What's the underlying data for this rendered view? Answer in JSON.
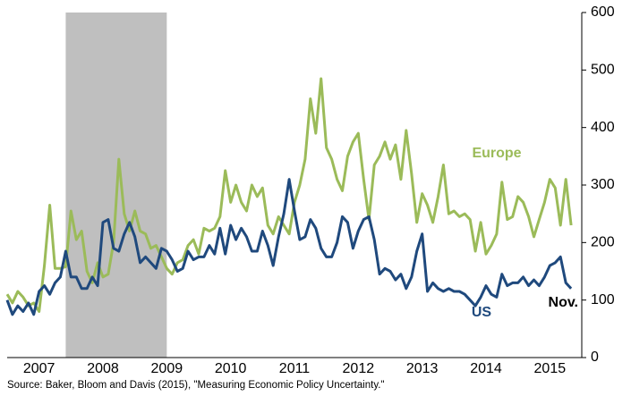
{
  "chart_data": {
    "type": "line",
    "x": [
      2007,
      2007.083,
      2007.167,
      2007.25,
      2007.333,
      2007.417,
      2007.5,
      2007.583,
      2007.667,
      2007.75,
      2007.833,
      2007.917,
      2008,
      2008.083,
      2008.167,
      2008.25,
      2008.333,
      2008.417,
      2008.5,
      2008.583,
      2008.667,
      2008.75,
      2008.833,
      2008.917,
      2009,
      2009.083,
      2009.167,
      2009.25,
      2009.333,
      2009.417,
      2009.5,
      2009.583,
      2009.667,
      2009.75,
      2009.833,
      2009.917,
      2010,
      2010.083,
      2010.167,
      2010.25,
      2010.333,
      2010.417,
      2010.5,
      2010.583,
      2010.667,
      2010.75,
      2010.833,
      2010.917,
      2011,
      2011.083,
      2011.167,
      2011.25,
      2011.333,
      2011.417,
      2011.5,
      2011.583,
      2011.667,
      2011.75,
      2011.833,
      2011.917,
      2012,
      2012.083,
      2012.167,
      2012.25,
      2012.333,
      2012.417,
      2012.5,
      2012.583,
      2012.667,
      2012.75,
      2012.833,
      2012.917,
      2013,
      2013.083,
      2013.167,
      2013.25,
      2013.333,
      2013.417,
      2013.5,
      2013.583,
      2013.667,
      2013.75,
      2013.833,
      2013.917,
      2014,
      2014.083,
      2014.167,
      2014.25,
      2014.333,
      2014.417,
      2014.5,
      2014.583,
      2014.667,
      2014.75,
      2014.833,
      2014.917,
      2015,
      2015.083,
      2015.167,
      2015.25,
      2015.333,
      2015.417,
      2015.5,
      2015.583,
      2015.667,
      2015.75,
      2015.833
    ],
    "series": [
      {
        "name": "Europe",
        "color": "#9bbb59",
        "values": [
          110,
          95,
          115,
          105,
          90,
          95,
          80,
          160,
          265,
          155,
          155,
          158,
          255,
          205,
          220,
          150,
          130,
          165,
          140,
          145,
          200,
          345,
          250,
          220,
          255,
          220,
          215,
          190,
          195,
          175,
          155,
          145,
          165,
          170,
          195,
          205,
          180,
          225,
          220,
          225,
          245,
          325,
          270,
          300,
          270,
          255,
          300,
          280,
          295,
          230,
          215,
          245,
          230,
          215,
          270,
          300,
          345,
          450,
          390,
          485,
          365,
          345,
          310,
          290,
          350,
          375,
          390,
          310,
          240,
          335,
          350,
          375,
          345,
          370,
          310,
          395,
          320,
          235,
          285,
          265,
          235,
          280,
          335,
          250,
          255,
          245,
          250,
          240,
          185,
          235,
          180,
          195,
          215,
          305,
          240,
          245,
          280,
          270,
          245,
          210,
          240,
          270,
          310,
          295,
          230,
          310,
          230
        ]
      },
      {
        "name": "US",
        "color": "#1f497d",
        "values": [
          100,
          75,
          90,
          80,
          95,
          75,
          115,
          125,
          110,
          130,
          140,
          185,
          140,
          140,
          120,
          120,
          140,
          125,
          235,
          240,
          190,
          185,
          215,
          235,
          210,
          165,
          175,
          165,
          155,
          190,
          185,
          170,
          150,
          155,
          185,
          170,
          175,
          175,
          195,
          180,
          225,
          180,
          230,
          205,
          225,
          210,
          185,
          185,
          220,
          195,
          160,
          210,
          250,
          310,
          255,
          205,
          210,
          240,
          225,
          190,
          175,
          175,
          200,
          245,
          235,
          190,
          220,
          240,
          245,
          205,
          145,
          155,
          150,
          135,
          145,
          120,
          140,
          185,
          215,
          115,
          130,
          120,
          115,
          120,
          115,
          115,
          110,
          100,
          90,
          105,
          125,
          110,
          105,
          145,
          125,
          130,
          130,
          140,
          125,
          135,
          125,
          140,
          160,
          165,
          175,
          130,
          120
        ]
      }
    ],
    "annotation": "Nov.",
    "source": "Source: Baker, Bloom and Davis (2015), \"Measuring Economic Policy Uncertainty.\"",
    "shaded_x": [
      2007.917,
      2009.5
    ],
    "xlim": [
      2007,
      2016
    ],
    "xticks": [
      {
        "value": 2007.5,
        "label": "2007"
      },
      {
        "value": 2008.5,
        "label": "2008"
      },
      {
        "value": 2009.5,
        "label": "2009"
      },
      {
        "value": 2010.5,
        "label": "2010"
      },
      {
        "value": 2011.5,
        "label": "2011"
      },
      {
        "value": 2012.5,
        "label": "2012"
      },
      {
        "value": 2013.5,
        "label": "2013"
      },
      {
        "value": 2014.5,
        "label": "2014"
      },
      {
        "value": 2015.5,
        "label": "2015"
      }
    ],
    "ylim": [
      0,
      600
    ],
    "yticks": [
      0,
      100,
      200,
      300,
      400,
      500,
      600
    ]
  }
}
